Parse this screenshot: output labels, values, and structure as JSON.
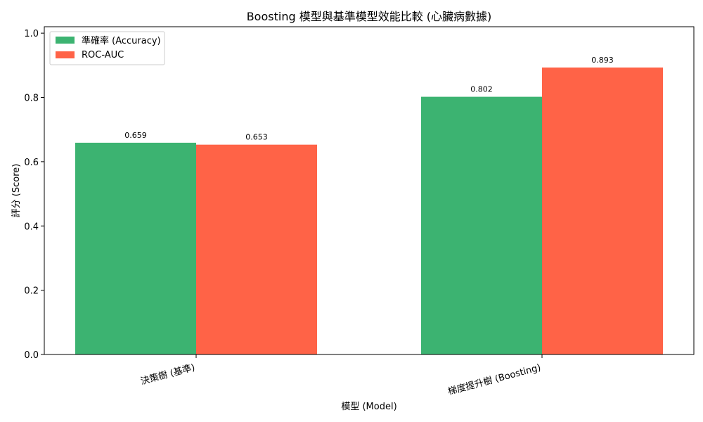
{
  "chart_data": {
    "type": "bar",
    "title": "Boosting 模型與基準模型效能比較 (心臟病數據)",
    "xlabel": "模型 (Model)",
    "ylabel": "評分 (Score)",
    "categories": [
      "決策樹 (基準)",
      "梯度提升樹 (Boosting)"
    ],
    "series": [
      {
        "name": "準確率 (Accuracy)",
        "color": "#3cb371",
        "values": [
          0.659,
          0.802
        ],
        "labels": [
          "0.659",
          "0.802"
        ]
      },
      {
        "name": "ROC-AUC",
        "color": "#ff6347",
        "values": [
          0.653,
          0.893
        ],
        "labels": [
          "0.653",
          "0.893"
        ]
      }
    ],
    "ylim": [
      0,
      1.02
    ],
    "yticks": [
      0.0,
      0.2,
      0.4,
      0.6,
      0.8,
      1.0
    ],
    "ytick_labels": [
      "0.0",
      "0.2",
      "0.4",
      "0.6",
      "0.8",
      "1.0"
    ],
    "grid": false,
    "legend_position": "top-left"
  }
}
